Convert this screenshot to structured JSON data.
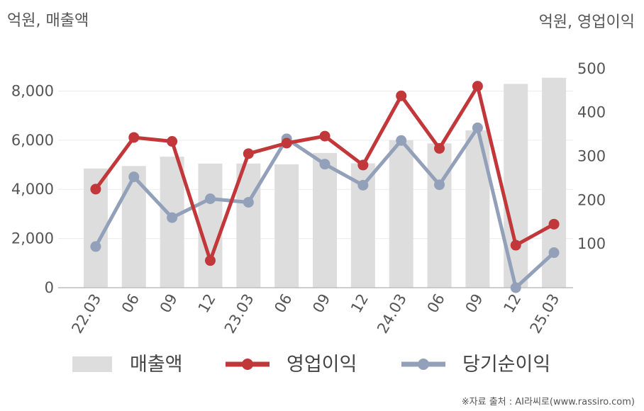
{
  "chart_data": {
    "type": "bar",
    "categories": [
      "22.03",
      "06",
      "09",
      "12",
      "23.03",
      "06",
      "09",
      "12",
      "24.03",
      "06",
      "09",
      "12",
      "25.03"
    ],
    "left_axis": {
      "unit_label": "억원, 매출액",
      "ylim": [
        0,
        9800
      ],
      "ticks": [
        0,
        2000,
        4000,
        6000,
        8000
      ],
      "tick_labels": [
        "0",
        "2,000",
        "4,000",
        "6,000",
        "8,000"
      ]
    },
    "right_axis": {
      "unit_label": "억원, 영업이익",
      "ylim": [
        0,
        550
      ],
      "ticks": [
        100,
        200,
        300,
        400,
        500
      ],
      "tick_labels": [
        "100",
        "200",
        "300",
        "400",
        "500"
      ]
    },
    "grid": true,
    "legend_position": "bottom",
    "series": [
      {
        "name": "매출액",
        "kind": "bar",
        "axis": "left",
        "color": "#dddddd",
        "values": [
          4850,
          4950,
          5330,
          5050,
          5050,
          5020,
          5480,
          5060,
          6000,
          5870,
          6400,
          8290,
          8540
        ]
      },
      {
        "name": "영업이익",
        "kind": "line",
        "axis": "right",
        "color": "#c1373a",
        "values": [
          225,
          343,
          334,
          62,
          306,
          330,
          346,
          280,
          438,
          318,
          460,
          97,
          145
        ]
      },
      {
        "name": "당기순이익",
        "kind": "line",
        "axis": "right",
        "color": "#93a0b9",
        "values": [
          94,
          253,
          160,
          203,
          195,
          340,
          282,
          234,
          336,
          235,
          365,
          0,
          80
        ]
      }
    ],
    "source": "※자료 출처 : AI라씨로(www.rassiro.com)"
  }
}
